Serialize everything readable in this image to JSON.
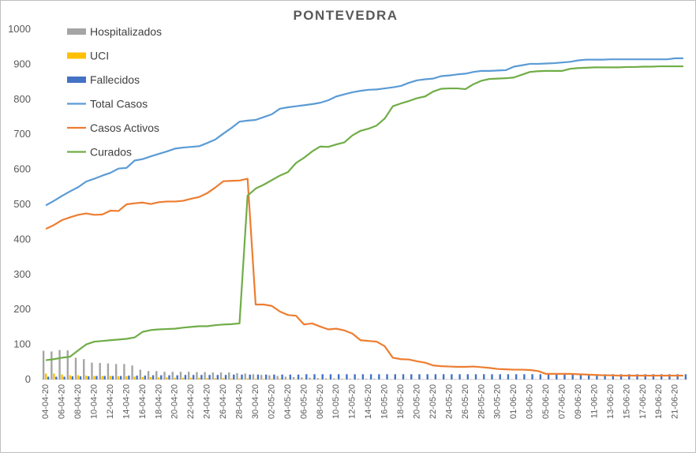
{
  "chart_data": {
    "type": "bar+line",
    "title": "PONTEVEDRA",
    "ylim": [
      0,
      1000
    ],
    "yticks": [
      0,
      100,
      200,
      300,
      400,
      500,
      600,
      700,
      800,
      900,
      1000
    ],
    "grid": false,
    "legend_position": "top-left",
    "x_labels": [
      "04-04-20",
      "06-04-20",
      "08-04-20",
      "10-04-20",
      "12-04-20",
      "14-04-20",
      "16-04-20",
      "18-04-20",
      "20-04-20",
      "22-04-20",
      "24-04-20",
      "26-04-20",
      "28-04-20",
      "30-04-20",
      "02-05-20",
      "04-05-20",
      "06-05-20",
      "08-05-20",
      "10-05-20",
      "12-05-20",
      "14-05-20",
      "16-05-20",
      "18-05-20",
      "20-05-20",
      "22-05-20",
      "24-05-20",
      "26-05-20",
      "28-05-20",
      "30-05-20",
      "01-06-20",
      "03-06-20",
      "05-06-20",
      "07-06-20",
      "09-06-20",
      "11-06-20",
      "13-06-20",
      "15-06-20",
      "17-06-20",
      "19-06-20",
      "21-06-20"
    ],
    "label_every": 2,
    "series": [
      {
        "name": "Hospitalizados",
        "type": "bar",
        "color": "#a5a5a5",
        "values": [
          82,
          80,
          84,
          83,
          62,
          58,
          48,
          47,
          46,
          44,
          44,
          40,
          28,
          24,
          24,
          22,
          22,
          22,
          22,
          21,
          21,
          20,
          20,
          20,
          18,
          17,
          15,
          13,
          12,
          10,
          8,
          7,
          6,
          5,
          4,
          3,
          3,
          2,
          2,
          2,
          2,
          2,
          1,
          1,
          1,
          1,
          1,
          1,
          1,
          1,
          1,
          1,
          1,
          1,
          1,
          1,
          1,
          1,
          1,
          1,
          1,
          1,
          1,
          1,
          1,
          1,
          1,
          1,
          1,
          1,
          1,
          1,
          1,
          1,
          1,
          1,
          1,
          1,
          1,
          1
        ]
      },
      {
        "name": "UCI",
        "type": "bar",
        "color": "#ffc000",
        "values": [
          17,
          17,
          14,
          12,
          12,
          11,
          10,
          10,
          10,
          9,
          9,
          8,
          7,
          7,
          6,
          6,
          5,
          5,
          5,
          5,
          4,
          4,
          4,
          3,
          3,
          3,
          2,
          2,
          2,
          2,
          1,
          1,
          1,
          1,
          1,
          1,
          1,
          1,
          0,
          0,
          0,
          0,
          0,
          0,
          0,
          0,
          0,
          0,
          0,
          0,
          0,
          0,
          0,
          0,
          0,
          0,
          0,
          0,
          0,
          0,
          0,
          0,
          0,
          0,
          0,
          0,
          0,
          0,
          0,
          0,
          0,
          0,
          0,
          0,
          0,
          0,
          0,
          0,
          0,
          0
        ]
      },
      {
        "name": "Fallecidos",
        "type": "bar",
        "color": "#4472c4",
        "values": [
          8,
          8,
          8,
          9,
          9,
          9,
          10,
          10,
          10,
          10,
          11,
          11,
          11,
          12,
          12,
          12,
          12,
          13,
          13,
          13,
          13,
          13,
          13,
          14,
          14,
          14,
          14,
          14,
          14,
          14,
          14,
          14,
          15,
          15,
          15,
          15,
          15,
          15,
          15,
          15,
          15,
          15,
          15,
          15,
          15,
          15,
          15,
          15,
          15,
          15,
          15,
          15,
          15,
          15,
          15,
          15,
          15,
          15,
          15,
          15,
          15,
          15,
          15,
          15,
          15,
          15,
          15,
          15,
          15,
          15,
          15,
          15,
          15,
          15,
          15,
          15,
          15,
          15,
          15,
          15
        ]
      },
      {
        "name": "Total Casos",
        "type": "line",
        "color": "#5b9bd5",
        "values": [
          497,
          510,
          524,
          537,
          549,
          565,
          573,
          582,
          590,
          602,
          604,
          625,
          629,
          637,
          644,
          651,
          659,
          662,
          664,
          666,
          675,
          685,
          702,
          718,
          736,
          739,
          741,
          749,
          757,
          773,
          777,
          780,
          783,
          786,
          790,
          797,
          808,
          814,
          820,
          824,
          827,
          828,
          831,
          834,
          838,
          847,
          854,
          857,
          859,
          866,
          868,
          871,
          873,
          878,
          881,
          881,
          882,
          883,
          893,
          897,
          901,
          901,
          902,
          903,
          905,
          907,
          911,
          913,
          913,
          913,
          914,
          914,
          914,
          914,
          914,
          914,
          914,
          914,
          917,
          917
        ]
      },
      {
        "name": "Casos Activos",
        "type": "line",
        "color": "#ed7d31",
        "values": [
          430,
          441,
          455,
          463,
          470,
          474,
          470,
          471,
          482,
          481,
          500,
          503,
          505,
          501,
          506,
          508,
          508,
          510,
          516,
          521,
          532,
          548,
          566,
          567,
          568,
          573,
          214,
          214,
          210,
          194,
          184,
          182,
          157,
          160,
          151,
          143,
          145,
          140,
          131,
          112,
          110,
          108,
          95,
          62,
          58,
          57,
          52,
          48,
          40,
          38,
          37,
          36,
          36,
          37,
          35,
          33,
          30,
          29,
          28,
          28,
          27,
          24,
          16,
          16,
          16,
          16,
          15,
          14,
          13,
          12,
          12,
          11,
          11,
          11,
          11,
          11,
          11,
          11,
          11,
          11
        ]
      },
      {
        "name": "Curados",
        "type": "line",
        "color": "#70ad47",
        "values": [
          55,
          58,
          62,
          65,
          83,
          100,
          108,
          110,
          112,
          114,
          116,
          120,
          136,
          141,
          143,
          144,
          145,
          148,
          150,
          152,
          152,
          155,
          157,
          158,
          160,
          525,
          545,
          556,
          569,
          582,
          592,
          618,
          633,
          651,
          665,
          664,
          671,
          677,
          697,
          710,
          716,
          725,
          745,
          780,
          788,
          795,
          803,
          808,
          822,
          830,
          831,
          831,
          829,
          843,
          853,
          858,
          859,
          860,
          862,
          870,
          878,
          880,
          881,
          881,
          881,
          887,
          889,
          890,
          891,
          891,
          891,
          891,
          892,
          892,
          893,
          893,
          894,
          894,
          894,
          894
        ]
      }
    ]
  }
}
